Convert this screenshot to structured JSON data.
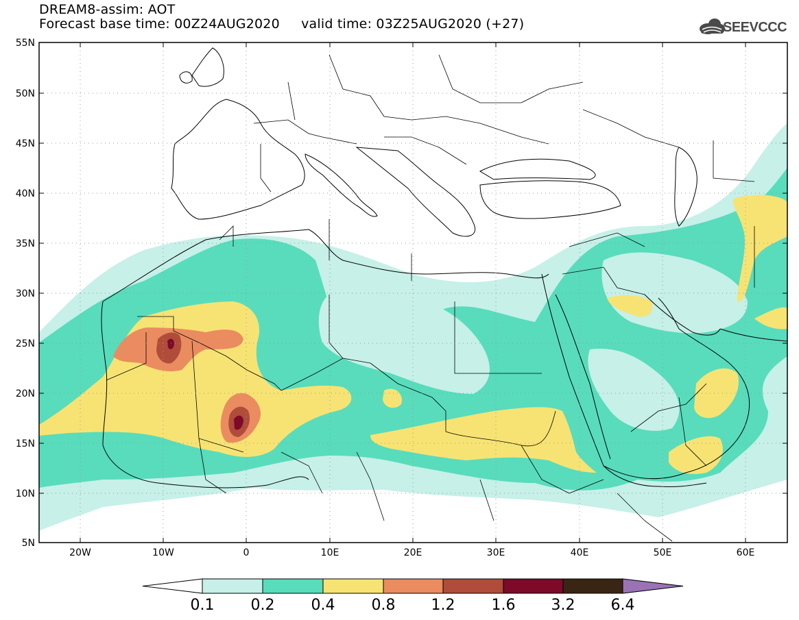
{
  "header": {
    "title": "DREAM8-assim: AOT",
    "subtitle_base": "Forecast base time: 00Z24AUG2020",
    "subtitle_valid": "valid time: 03Z25AUG2020 (+27)"
  },
  "logo": {
    "text": "SEEVCCC",
    "icon": "cloud-icon"
  },
  "map": {
    "lon_range": [
      -25,
      65
    ],
    "lat_range": [
      5,
      55
    ],
    "gridlines": true,
    "lat_labels": [
      "5N",
      "10N",
      "15N",
      "20N",
      "25N",
      "30N",
      "35N",
      "40N",
      "45N",
      "50N",
      "55N"
    ],
    "lon_labels": [
      "20W",
      "10W",
      "0",
      "10E",
      "20E",
      "30E",
      "40E",
      "50E",
      "60E"
    ]
  },
  "colorbar": {
    "labels": [
      "0.1",
      "0.2",
      "0.4",
      "0.8",
      "1.2",
      "1.6",
      "3.2",
      "6.4"
    ],
    "colors": {
      "c1": "#c6f0e8",
      "c2": "#58dcbc",
      "c3": "#f7e373",
      "c4": "#ea8c60",
      "c5": "#b04c3a",
      "c6": "#7c0a28",
      "c7": "#3a2413",
      "c8": "#9a72b5"
    }
  }
}
